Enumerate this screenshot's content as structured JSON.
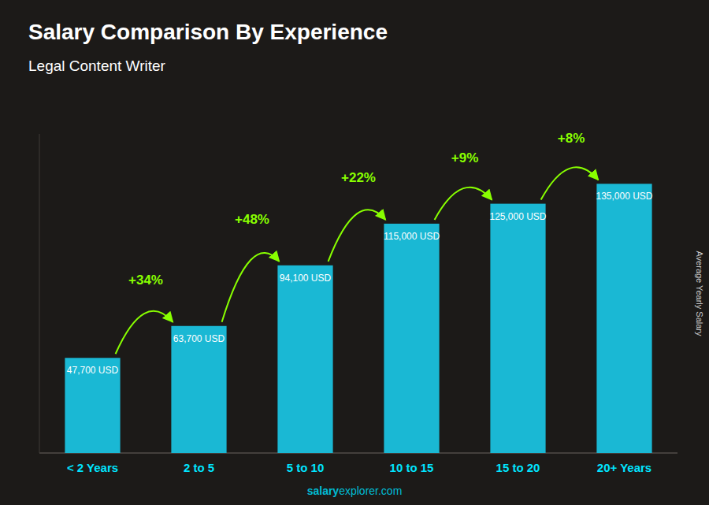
{
  "chart_data": {
    "type": "bar",
    "title": "Salary Comparison By Experience",
    "subtitle": "Legal Content Writer",
    "ylabel": "Average Yearly Salary",
    "watermark": "salaryexplorer.com",
    "categories": [
      "< 2 Years",
      "2 to 5",
      "5 to 10",
      "10 to 15",
      "15 to 20",
      "20+ Years"
    ],
    "values": [
      47700,
      63700,
      94100,
      115000,
      125000,
      135000
    ],
    "value_labels": [
      "47,700 USD",
      "63,700 USD",
      "94,100 USD",
      "115,000 USD",
      "125,000 USD",
      "135,000 USD"
    ],
    "annotations": [
      "+34%",
      "+48%",
      "+22%",
      "+9%",
      "+8%"
    ],
    "color": "#1ab8d4",
    "ylim": [
      0,
      160000
    ],
    "data_labels": true,
    "tick_labels": "x",
    "grid": false
  }
}
